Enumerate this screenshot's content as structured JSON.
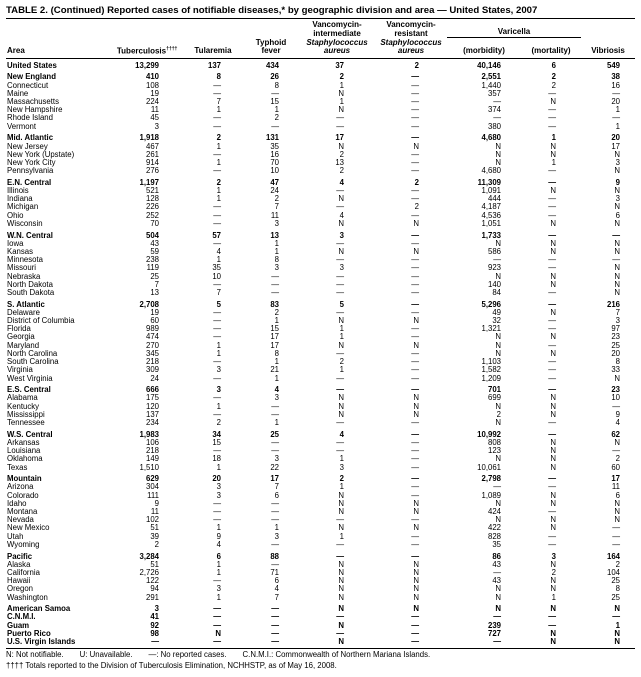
{
  "title": "TABLE 2. (Continued) Reported cases of notifiable diseases,* by geographic division and area — United States, 2007",
  "table": {
    "headers": {
      "area": "Area",
      "tuberculosis": "Tuberculosis",
      "tuberculosis_daggers": "††††",
      "tularemia": "Tularemia",
      "typhoid_line1": "Typhoid",
      "typhoid_line2": "fever",
      "visa_line1": "Vancomycin-",
      "visa_line2": "intermediate",
      "visa_line3": "Staphylococcus",
      "visa_line4": "aureus",
      "vrsa_line1": "Vancomycin-",
      "vrsa_line2": "resistant",
      "vrsa_line3": "Staphylococcus",
      "vrsa_line4": "aureus",
      "varicella": "Varicella",
      "varicella_morbidity": "(morbidity)",
      "varicella_mortality": "(mortality)",
      "vibriosis": "Vibriosis"
    },
    "rows": [
      {
        "area": "United States",
        "bold": true,
        "gap": false,
        "values": [
          "13,299",
          "137",
          "434",
          "37",
          "2",
          "40,146",
          "6",
          "549"
        ]
      },
      {
        "area": "New England",
        "bold": true,
        "gap": true,
        "values": [
          "410",
          "8",
          "26",
          "2",
          "—",
          "2,551",
          "2",
          "38"
        ]
      },
      {
        "area": "Connecticut",
        "bold": false,
        "gap": false,
        "values": [
          "108",
          "—",
          "8",
          "1",
          "—",
          "1,440",
          "2",
          "16"
        ]
      },
      {
        "area": "Maine",
        "bold": false,
        "gap": false,
        "values": [
          "19",
          "—",
          "—",
          "N",
          "—",
          "357",
          "—",
          "—"
        ]
      },
      {
        "area": "Massachusetts",
        "bold": false,
        "gap": false,
        "values": [
          "224",
          "7",
          "15",
          "1",
          "—",
          "—",
          "N",
          "20"
        ]
      },
      {
        "area": "New Hampshire",
        "bold": false,
        "gap": false,
        "values": [
          "11",
          "1",
          "1",
          "N",
          "—",
          "374",
          "—",
          "1"
        ]
      },
      {
        "area": "Rhode Island",
        "bold": false,
        "gap": false,
        "values": [
          "45",
          "—",
          "2",
          "—",
          "—",
          "—",
          "—",
          "—"
        ]
      },
      {
        "area": "Vermont",
        "bold": false,
        "gap": false,
        "values": [
          "3",
          "—",
          "—",
          "—",
          "—",
          "380",
          "—",
          "1"
        ]
      },
      {
        "area": "Mid. Atlantic",
        "bold": true,
        "gap": true,
        "values": [
          "1,918",
          "2",
          "131",
          "17",
          "—",
          "4,680",
          "1",
          "20"
        ]
      },
      {
        "area": "New Jersey",
        "bold": false,
        "gap": false,
        "values": [
          "467",
          "1",
          "35",
          "N",
          "N",
          "N",
          "N",
          "17"
        ]
      },
      {
        "area": "New York (Upstate)",
        "bold": false,
        "gap": false,
        "values": [
          "261",
          "—",
          "16",
          "2",
          "—",
          "N",
          "N",
          "N"
        ]
      },
      {
        "area": "New York City",
        "bold": false,
        "gap": false,
        "values": [
          "914",
          "1",
          "70",
          "13",
          "—",
          "N",
          "1",
          "3"
        ]
      },
      {
        "area": "Pennsylvania",
        "bold": false,
        "gap": false,
        "values": [
          "276",
          "—",
          "10",
          "2",
          "—",
          "4,680",
          "—",
          "N"
        ]
      },
      {
        "area": "E.N. Central",
        "bold": true,
        "gap": true,
        "values": [
          "1,197",
          "2",
          "47",
          "4",
          "2",
          "11,309",
          "—",
          "9"
        ]
      },
      {
        "area": "Illinois",
        "bold": false,
        "gap": false,
        "values": [
          "521",
          "1",
          "24",
          "—",
          "—",
          "1,091",
          "N",
          "N"
        ]
      },
      {
        "area": "Indiana",
        "bold": false,
        "gap": false,
        "values": [
          "128",
          "1",
          "2",
          "N",
          "—",
          "444",
          "—",
          "3"
        ]
      },
      {
        "area": "Michigan",
        "bold": false,
        "gap": false,
        "values": [
          "226",
          "—",
          "7",
          "—",
          "2",
          "4,187",
          "—",
          "N"
        ]
      },
      {
        "area": "Ohio",
        "bold": false,
        "gap": false,
        "values": [
          "252",
          "—",
          "11",
          "4",
          "—",
          "4,536",
          "—",
          "6"
        ]
      },
      {
        "area": "Wisconsin",
        "bold": false,
        "gap": false,
        "values": [
          "70",
          "—",
          "3",
          "N",
          "N",
          "1,051",
          "N",
          "N"
        ]
      },
      {
        "area": "W.N. Central",
        "bold": true,
        "gap": true,
        "values": [
          "504",
          "57",
          "13",
          "3",
          "—",
          "1,733",
          "—",
          "—"
        ]
      },
      {
        "area": "Iowa",
        "bold": false,
        "gap": false,
        "values": [
          "43",
          "—",
          "1",
          "—",
          "—",
          "N",
          "N",
          "N"
        ]
      },
      {
        "area": "Kansas",
        "bold": false,
        "gap": false,
        "values": [
          "59",
          "4",
          "1",
          "N",
          "N",
          "586",
          "N",
          "N"
        ]
      },
      {
        "area": "Minnesota",
        "bold": false,
        "gap": false,
        "values": [
          "238",
          "1",
          "8",
          "—",
          "—",
          "—",
          "—",
          "—"
        ]
      },
      {
        "area": "Missouri",
        "bold": false,
        "gap": false,
        "values": [
          "119",
          "35",
          "3",
          "3",
          "—",
          "923",
          "—",
          "N"
        ]
      },
      {
        "area": "Nebraska",
        "bold": false,
        "gap": false,
        "values": [
          "25",
          "10",
          "—",
          "—",
          "—",
          "N",
          "N",
          "N"
        ]
      },
      {
        "area": "North Dakota",
        "bold": false,
        "gap": false,
        "values": [
          "7",
          "—",
          "—",
          "—",
          "—",
          "140",
          "N",
          "N"
        ]
      },
      {
        "area": "South Dakota",
        "bold": false,
        "gap": false,
        "values": [
          "13",
          "7",
          "—",
          "—",
          "—",
          "84",
          "—",
          "N"
        ]
      },
      {
        "area": "S. Atlantic",
        "bold": true,
        "gap": true,
        "values": [
          "2,708",
          "5",
          "83",
          "5",
          "—",
          "5,296",
          "—",
          "216"
        ]
      },
      {
        "area": "Delaware",
        "bold": false,
        "gap": false,
        "values": [
          "19",
          "—",
          "2",
          "—",
          "—",
          "49",
          "N",
          "7"
        ]
      },
      {
        "area": "District of Columbia",
        "bold": false,
        "gap": false,
        "values": [
          "60",
          "—",
          "1",
          "N",
          "N",
          "32",
          "—",
          "3"
        ]
      },
      {
        "area": "Florida",
        "bold": false,
        "gap": false,
        "values": [
          "989",
          "—",
          "15",
          "1",
          "—",
          "1,321",
          "—",
          "97"
        ]
      },
      {
        "area": "Georgia",
        "bold": false,
        "gap": false,
        "values": [
          "474",
          "—",
          "17",
          "1",
          "—",
          "N",
          "N",
          "23"
        ]
      },
      {
        "area": "Maryland",
        "bold": false,
        "gap": false,
        "values": [
          "270",
          "1",
          "17",
          "N",
          "N",
          "N",
          "—",
          "25"
        ]
      },
      {
        "area": "North Carolina",
        "bold": false,
        "gap": false,
        "values": [
          "345",
          "1",
          "8",
          "—",
          "—",
          "N",
          "N",
          "20"
        ]
      },
      {
        "area": "South Carolina",
        "bold": false,
        "gap": false,
        "values": [
          "218",
          "—",
          "1",
          "2",
          "—",
          "1,103",
          "—",
          "8"
        ]
      },
      {
        "area": "Virginia",
        "bold": false,
        "gap": false,
        "values": [
          "309",
          "3",
          "21",
          "1",
          "—",
          "1,582",
          "—",
          "33"
        ]
      },
      {
        "area": "West Virginia",
        "bold": false,
        "gap": false,
        "values": [
          "24",
          "—",
          "1",
          "—",
          "—",
          "1,209",
          "—",
          "N"
        ]
      },
      {
        "area": "E.S. Central",
        "bold": true,
        "gap": true,
        "values": [
          "666",
          "3",
          "4",
          "—",
          "—",
          "701",
          "—",
          "23"
        ]
      },
      {
        "area": "Alabama",
        "bold": false,
        "gap": false,
        "values": [
          "175",
          "—",
          "3",
          "N",
          "N",
          "699",
          "N",
          "10"
        ]
      },
      {
        "area": "Kentucky",
        "bold": false,
        "gap": false,
        "values": [
          "120",
          "1",
          "—",
          "N",
          "N",
          "N",
          "N",
          "—"
        ]
      },
      {
        "area": "Mississippi",
        "bold": false,
        "gap": false,
        "values": [
          "137",
          "—",
          "—",
          "N",
          "N",
          "2",
          "N",
          "9"
        ]
      },
      {
        "area": "Tennessee",
        "bold": false,
        "gap": false,
        "values": [
          "234",
          "2",
          "1",
          "—",
          "—",
          "N",
          "—",
          "4"
        ]
      },
      {
        "area": "W.S. Central",
        "bold": true,
        "gap": true,
        "values": [
          "1,983",
          "34",
          "25",
          "4",
          "—",
          "10,992",
          "—",
          "62"
        ]
      },
      {
        "area": "Arkansas",
        "bold": false,
        "gap": false,
        "values": [
          "106",
          "15",
          "—",
          "—",
          "—",
          "808",
          "N",
          "N"
        ]
      },
      {
        "area": "Louisiana",
        "bold": false,
        "gap": false,
        "values": [
          "218",
          "—",
          "—",
          "—",
          "—",
          "123",
          "N",
          "—"
        ]
      },
      {
        "area": "Oklahoma",
        "bold": false,
        "gap": false,
        "values": [
          "149",
          "18",
          "3",
          "1",
          "—",
          "N",
          "N",
          "2"
        ]
      },
      {
        "area": "Texas",
        "bold": false,
        "gap": false,
        "values": [
          "1,510",
          "1",
          "22",
          "3",
          "—",
          "10,061",
          "N",
          "60"
        ]
      },
      {
        "area": "Mountain",
        "bold": true,
        "gap": true,
        "values": [
          "629",
          "20",
          "17",
          "2",
          "—",
          "2,798",
          "—",
          "17"
        ]
      },
      {
        "area": "Arizona",
        "bold": false,
        "gap": false,
        "values": [
          "304",
          "3",
          "7",
          "1",
          "—",
          "—",
          "—",
          "11"
        ]
      },
      {
        "area": "Colorado",
        "bold": false,
        "gap": false,
        "values": [
          "111",
          "3",
          "6",
          "N",
          "—",
          "1,089",
          "N",
          "6"
        ]
      },
      {
        "area": "Idaho",
        "bold": false,
        "gap": false,
        "values": [
          "9",
          "—",
          "—",
          "N",
          "N",
          "N",
          "N",
          "N"
        ]
      },
      {
        "area": "Montana",
        "bold": false,
        "gap": false,
        "values": [
          "11",
          "—",
          "—",
          "N",
          "N",
          "424",
          "—",
          "N"
        ]
      },
      {
        "area": "Nevada",
        "bold": false,
        "gap": false,
        "values": [
          "102",
          "—",
          "—",
          "—",
          "—",
          "N",
          "N",
          "N"
        ]
      },
      {
        "area": "New Mexico",
        "bold": false,
        "gap": false,
        "values": [
          "51",
          "1",
          "1",
          "N",
          "N",
          "422",
          "N",
          "—"
        ]
      },
      {
        "area": "Utah",
        "bold": false,
        "gap": false,
        "values": [
          "39",
          "9",
          "3",
          "1",
          "—",
          "828",
          "—",
          "—"
        ]
      },
      {
        "area": "Wyoming",
        "bold": false,
        "gap": false,
        "values": [
          "2",
          "4",
          "—",
          "—",
          "—",
          "35",
          "—",
          "—"
        ]
      },
      {
        "area": "Pacific",
        "bold": true,
        "gap": true,
        "values": [
          "3,284",
          "6",
          "88",
          "—",
          "—",
          "86",
          "3",
          "164"
        ]
      },
      {
        "area": "Alaska",
        "bold": false,
        "gap": false,
        "values": [
          "51",
          "1",
          "—",
          "N",
          "N",
          "43",
          "N",
          "2"
        ]
      },
      {
        "area": "California",
        "bold": false,
        "gap": false,
        "values": [
          "2,726",
          "1",
          "71",
          "N",
          "N",
          "—",
          "2",
          "104"
        ]
      },
      {
        "area": "Hawaii",
        "bold": false,
        "gap": false,
        "values": [
          "122",
          "—",
          "6",
          "N",
          "N",
          "43",
          "N",
          "25"
        ]
      },
      {
        "area": "Oregon",
        "bold": false,
        "gap": false,
        "values": [
          "94",
          "3",
          "4",
          "N",
          "N",
          "N",
          "N",
          "8"
        ]
      },
      {
        "area": "Washington",
        "bold": false,
        "gap": false,
        "values": [
          "291",
          "1",
          "7",
          "N",
          "N",
          "N",
          "1",
          "25"
        ]
      },
      {
        "area": "American Samoa",
        "bold": true,
        "gap": true,
        "values": [
          "3",
          "—",
          "—",
          "N",
          "N",
          "N",
          "N",
          "N"
        ]
      },
      {
        "area": "C.N.M.I.",
        "bold": true,
        "gap": false,
        "values": [
          "41",
          "—",
          "—",
          "—",
          "—",
          "—",
          "—",
          "—"
        ]
      },
      {
        "area": "Guam",
        "bold": true,
        "gap": false,
        "values": [
          "92",
          "—",
          "—",
          "N",
          "—",
          "239",
          "—",
          "1"
        ]
      },
      {
        "area": "Puerto Rico",
        "bold": true,
        "gap": false,
        "values": [
          "98",
          "N",
          "—",
          "—",
          "—",
          "727",
          "N",
          "N"
        ]
      },
      {
        "area": "U.S. Virgin Islands",
        "bold": true,
        "gap": false,
        "values": [
          "—",
          "—",
          "—",
          "N",
          "—",
          "—",
          "N",
          "N"
        ]
      }
    ]
  },
  "footnotes": {
    "legend": [
      "N: Not notifiable.",
      "U: Unavailable.",
      "—: No reported cases.",
      "C.N.M.I.: Commonwealth of Northern Mariana Islands."
    ],
    "daggers_note": "†††† Totals reported to the Division of Tuberculosis Elimination, NCHHSTP, as of May 16, 2008."
  }
}
